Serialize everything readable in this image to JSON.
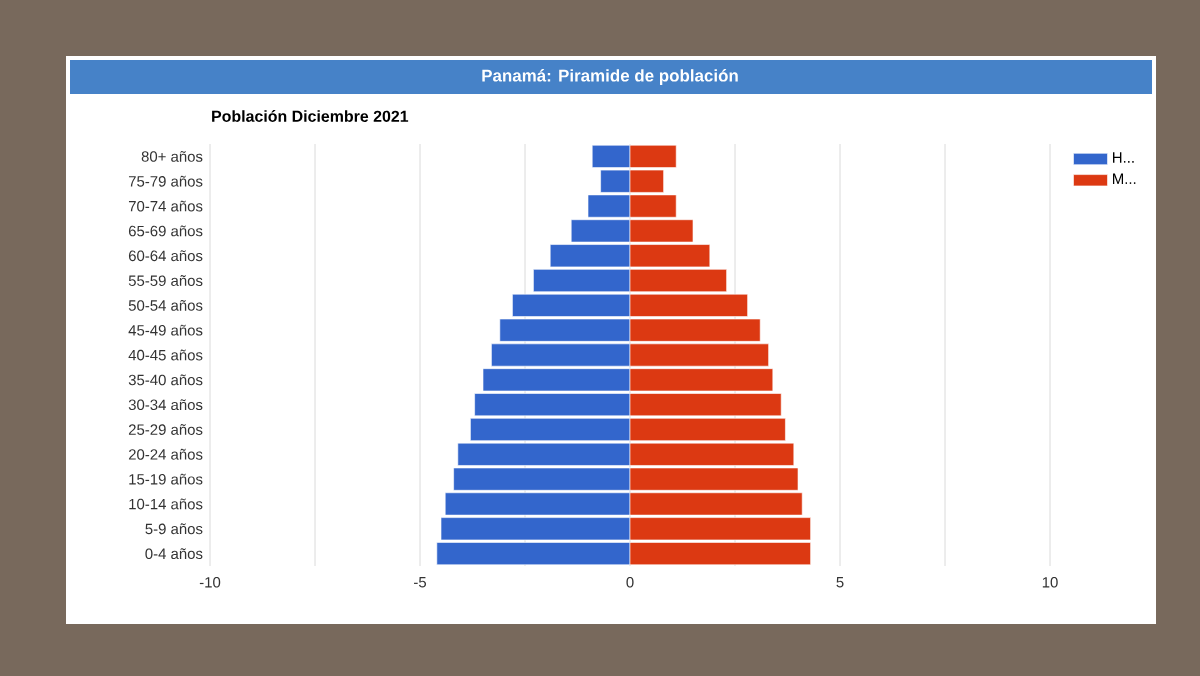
{
  "chart_data": {
    "type": "bar",
    "orientation": "horizontal",
    "title": "Panamá: Piramide de población",
    "subtitle": "Población Diciembre 2021",
    "categories": [
      "80+ años",
      "75-79 años",
      "70-74 años",
      "65-69 años",
      "60-64 años",
      "55-59 años",
      "50-54 años",
      "45-49 años",
      "40-45 años",
      "35-40 años",
      "30-34 años",
      "25-29 años",
      "20-24 años",
      "15-19 años",
      "10-14 años",
      "5-9 años",
      "0-4 años"
    ],
    "series": [
      {
        "name": "H...",
        "color": "#3366cc",
        "values": [
          -0.9,
          -0.7,
          -1.0,
          -1.4,
          -1.9,
          -2.3,
          -2.8,
          -3.1,
          -3.3,
          -3.5,
          -3.7,
          -3.8,
          -4.1,
          -4.2,
          -4.4,
          -4.5,
          -4.6
        ]
      },
      {
        "name": "M...",
        "color": "#dc3912",
        "values": [
          1.1,
          0.8,
          1.1,
          1.5,
          1.9,
          2.3,
          2.8,
          3.1,
          3.3,
          3.4,
          3.6,
          3.7,
          3.9,
          4.0,
          4.1,
          4.3,
          4.3
        ]
      }
    ],
    "xlim": [
      -10,
      10
    ],
    "xticks": [
      -10,
      {
        "value": -7.5,
        "label": null
      },
      -5,
      {
        "value": -2.5,
        "label": null
      },
      0,
      {
        "value": 2.5,
        "label": null
      },
      5,
      {
        "value": 7.5,
        "label": null
      },
      10
    ],
    "grid": "x",
    "legend": "top right",
    "stacked": true
  }
}
